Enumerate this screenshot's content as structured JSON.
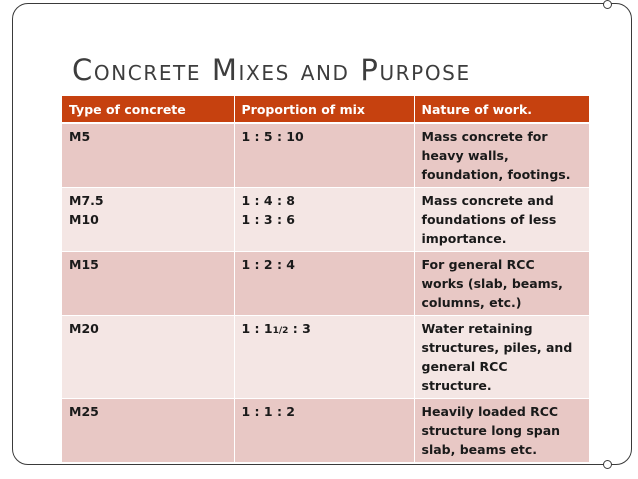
{
  "title": "Concrete Mixes and Purpose",
  "table": {
    "headers": [
      "Type of concrete",
      "Proportion of mix",
      "Nature of work."
    ],
    "rows": [
      {
        "type": [
          "M5"
        ],
        "proportion": [
          "1 : 5 : 10"
        ],
        "work": [
          "Mass concrete for",
          "heavy walls,",
          "foundation, footings."
        ]
      },
      {
        "type": [
          "M7.5",
          "M10"
        ],
        "proportion": [
          "1 : 4 : 8",
          "1 : 3 : 6"
        ],
        "work": [
          "Mass concrete and",
          "foundations of less",
          "importance."
        ]
      },
      {
        "type": [
          "M15"
        ],
        "proportion": [
          "1 : 2 : 4"
        ],
        "work": [
          "For general RCC",
          "works (slab, beams,",
          "columns, etc.)"
        ]
      },
      {
        "type": [
          "M20"
        ],
        "proportion_parts": {
          "before": "1 : 1",
          "fraction": "1/2",
          "after": " : 3"
        },
        "work": [
          "Water retaining",
          "structures, piles, and",
          "general RCC",
          "structure."
        ]
      },
      {
        "type": [
          "M25"
        ],
        "proportion": [
          "1 : 1 : 2"
        ],
        "work": [
          "Heavily loaded RCC",
          "structure long span",
          "slab, beams etc."
        ]
      }
    ]
  }
}
